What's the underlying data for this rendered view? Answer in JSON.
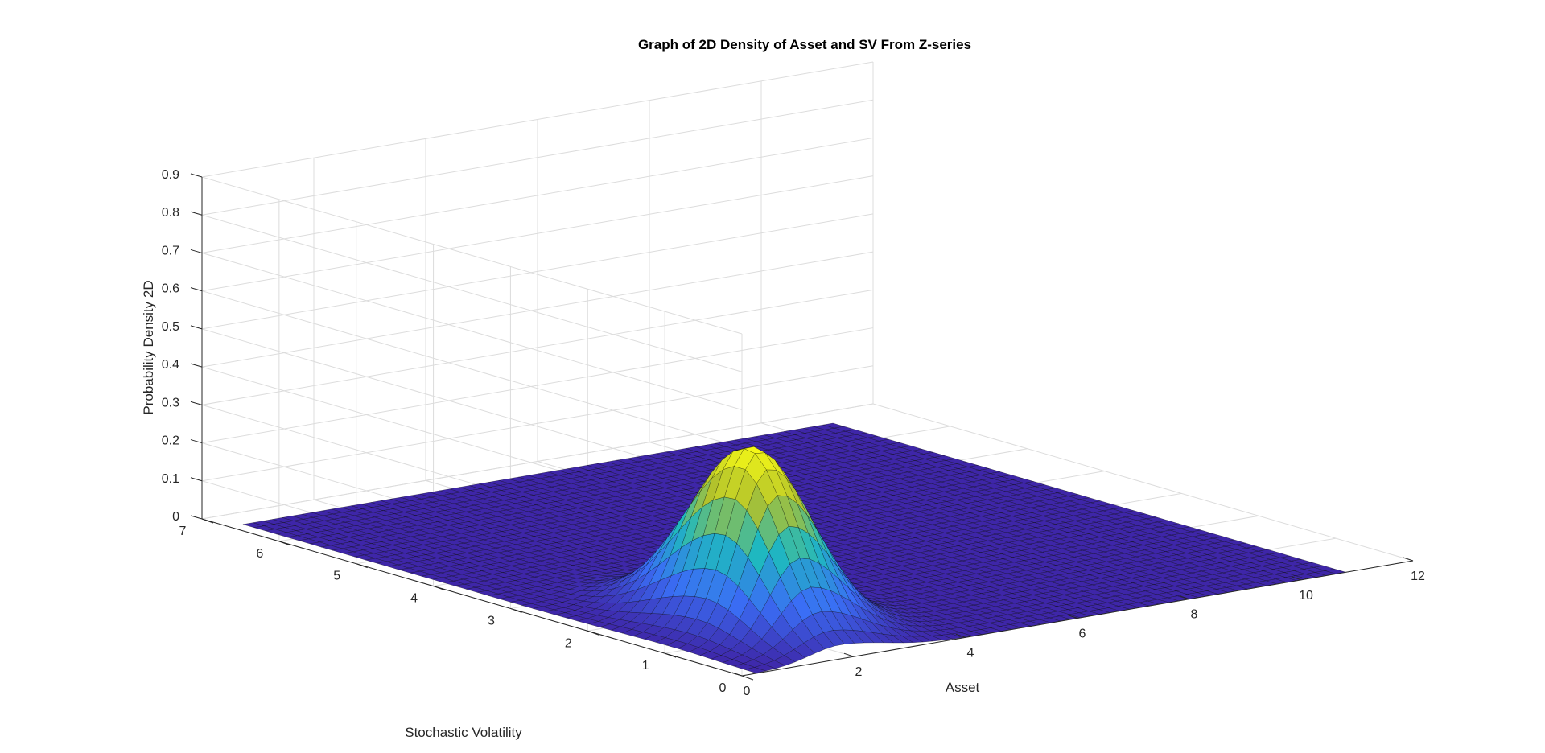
{
  "chart_data": {
    "type": "surface",
    "title": "Graph of 2D Density of Asset and SV From Z-series",
    "xlabel": "Asset",
    "ylabel": "Stochastic Volatility",
    "zlabel": "Probability Density 2D",
    "xlim": [
      0,
      12
    ],
    "ylim": [
      0,
      7
    ],
    "zlim": [
      0,
      0.9
    ],
    "x_ticks": [
      "0",
      "2",
      "4",
      "6",
      "8",
      "10",
      "12"
    ],
    "y_ticks": [
      "0",
      "1",
      "2",
      "3",
      "4",
      "5",
      "6",
      "7"
    ],
    "z_ticks": [
      "0",
      "0.1",
      "0.2",
      "0.3",
      "0.4",
      "0.5",
      "0.6",
      "0.7",
      "0.8",
      "0.9"
    ],
    "peak": {
      "asset": 1.9,
      "sv": 1.25,
      "density": 0.48
    },
    "grid": true,
    "colormap": "parula",
    "colors": {
      "low": "#3e26a8",
      "mid": "#1fb8c0",
      "high": "#f9fb15",
      "edge": "#000000"
    }
  }
}
